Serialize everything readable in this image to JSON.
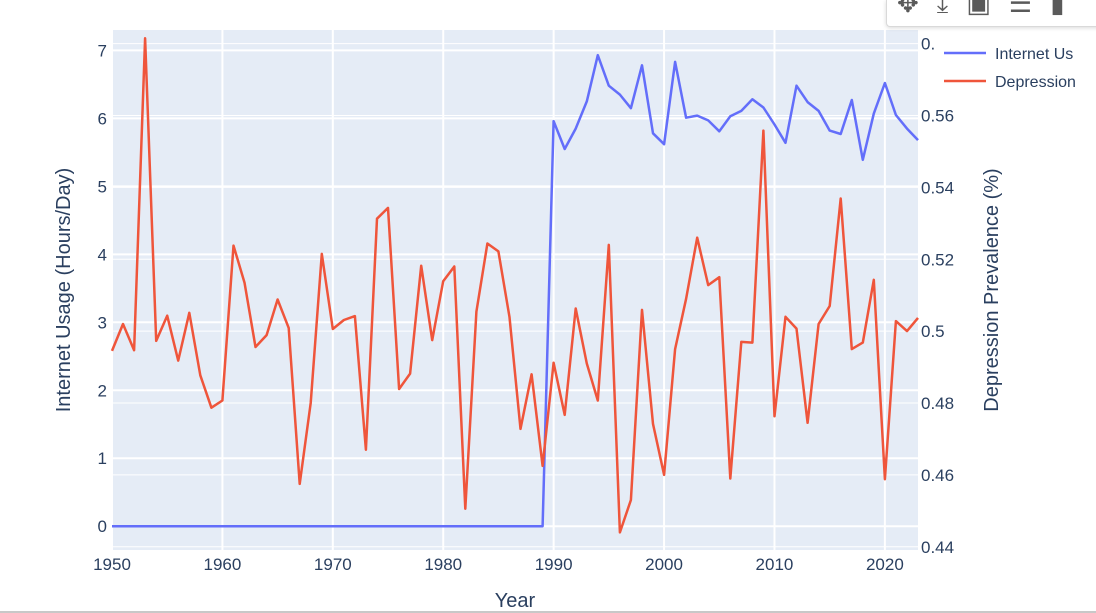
{
  "chart_data": {
    "type": "line",
    "xlabel": "Year",
    "ylabel": "Internet Usage (Hours/Day)",
    "y2label": "Depression Prevalence (%)",
    "xlim": [
      1950,
      2023
    ],
    "ylim": [
      -0.35,
      7.3
    ],
    "y2lim": [
      0.4391,
      0.5838
    ],
    "x_ticks": [
      "1950",
      "1960",
      "1970",
      "1980",
      "1990",
      "2000",
      "2010",
      "2020"
    ],
    "y_ticks": [
      "0",
      "1",
      "2",
      "3",
      "4",
      "5",
      "6",
      "7"
    ],
    "y2_ticks": [
      "0.44",
      "0.46",
      "0.48",
      "0.5",
      "0.52",
      "0.54",
      "0.56",
      "0."
    ],
    "legend_placement": "top-right",
    "grid": true,
    "x": [
      1950,
      1951,
      1952,
      1953,
      1954,
      1955,
      1956,
      1957,
      1958,
      1959,
      1960,
      1961,
      1962,
      1963,
      1964,
      1965,
      1966,
      1967,
      1968,
      1969,
      1970,
      1971,
      1972,
      1973,
      1974,
      1975,
      1976,
      1977,
      1978,
      1979,
      1980,
      1981,
      1982,
      1983,
      1984,
      1985,
      1986,
      1987,
      1988,
      1989,
      1990,
      1991,
      1992,
      1993,
      1994,
      1995,
      1996,
      1997,
      1998,
      1999,
      2000,
      2001,
      2002,
      2003,
      2004,
      2005,
      2006,
      2007,
      2008,
      2009,
      2010,
      2011,
      2012,
      2013,
      2014,
      2015,
      2016,
      2017,
      2018,
      2019,
      2020,
      2021,
      2022,
      2023
    ],
    "series": [
      {
        "name": "Internet Usage",
        "axis": "y",
        "color": "#636efa",
        "values": [
          0,
          0,
          0,
          0,
          0,
          0,
          0,
          0,
          0,
          0,
          0,
          0,
          0,
          0,
          0,
          0,
          0,
          0,
          0,
          0,
          0,
          0,
          0,
          0,
          0,
          0,
          0,
          0,
          0,
          0,
          0,
          0,
          0,
          0,
          0,
          0,
          0,
          0,
          0,
          0,
          5.96,
          5.55,
          5.85,
          6.25,
          6.93,
          6.48,
          6.35,
          6.15,
          6.78,
          5.78,
          5.62,
          6.83,
          6.01,
          6.04,
          5.97,
          5.81,
          6.03,
          6.11,
          6.28,
          6.16,
          5.91,
          5.64,
          6.48,
          6.24,
          6.11,
          5.82,
          5.77,
          6.27,
          5.39,
          6.07,
          6.52,
          6.05,
          5.85,
          5.68
        ]
      },
      {
        "name": "Depression Prevalence",
        "axis": "y2",
        "color": "#ef553b",
        "values": [
          0.4945,
          0.502,
          0.4947,
          0.5815,
          0.4973,
          0.5043,
          0.4918,
          0.5051,
          0.4877,
          0.4787,
          0.4807,
          0.5238,
          0.5135,
          0.4956,
          0.4989,
          0.5088,
          0.5009,
          0.4575,
          0.48,
          0.5215,
          0.5006,
          0.5031,
          0.5042,
          0.467,
          0.5313,
          0.5343,
          0.4839,
          0.4882,
          0.5182,
          0.4975,
          0.5139,
          0.518,
          0.4506,
          0.5054,
          0.5244,
          0.5222,
          0.5039,
          0.4728,
          0.488,
          0.4625,
          0.4912,
          0.4767,
          0.5063,
          0.491,
          0.4807,
          0.524,
          0.444,
          0.453,
          0.5059,
          0.4742,
          0.46,
          0.495,
          0.509,
          0.526,
          0.5128,
          0.515,
          0.459,
          0.497,
          0.4968,
          0.5558,
          0.4763,
          0.504,
          0.5007,
          0.4745,
          0.502,
          0.507,
          0.5369,
          0.495,
          0.4968,
          0.5143,
          0.4588,
          0.5028,
          0.5,
          0.5037
        ]
      }
    ]
  },
  "legend": {
    "items": [
      {
        "label": "Internet Us",
        "color": "#636efa"
      },
      {
        "label": "Depression",
        "color": "#ef553b"
      }
    ]
  },
  "modebar": {
    "icons": [
      "pan-icon",
      "download-icon",
      "autoscale-icon",
      "compare-icon",
      "more-icon"
    ]
  }
}
